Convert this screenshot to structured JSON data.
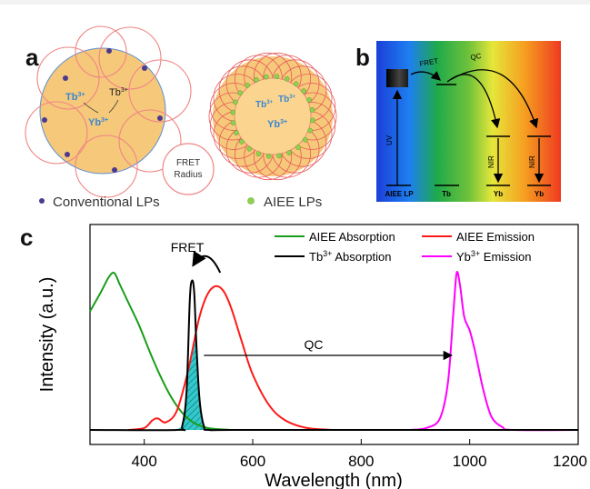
{
  "panels": {
    "a": {
      "label": "a",
      "ion_labels": {
        "tb": "Tb",
        "tb_sup": "3+",
        "yb": "Yb",
        "yb_sup": "3+"
      },
      "fret_radius_lines": [
        "FRET",
        "Radius"
      ],
      "legend": [
        {
          "text": "Conventional LPs",
          "color": "#4b3a8e"
        },
        {
          "text": "AIEE LPs",
          "color": "#8fd14f"
        }
      ]
    },
    "b": {
      "label": "b",
      "arrow_labels": [
        "FRET",
        "QC",
        "UV",
        "NIR",
        "NIR"
      ],
      "levels": [
        "AIEE LP",
        "Tb",
        "Yb",
        "Yb"
      ]
    },
    "c": {
      "label": "c"
    }
  },
  "chart_data": {
    "type": "line",
    "title": "",
    "xlabel": "Wavelength (nm)",
    "ylabel": "Intensity (a.u.)",
    "xlim": [
      300,
      1200
    ],
    "ylim": [
      0,
      1.05
    ],
    "xticks": [
      "400",
      "600",
      "800",
      "1000",
      "1200"
    ],
    "legend_position": "top",
    "legend": [
      {
        "name": "AIEE Absorption",
        "base": "AIEE Absorption",
        "sup": "",
        "rest": "",
        "color": "#1a9e1a"
      },
      {
        "name": "AIEE Emission",
        "base": "AIEE Emission",
        "sup": "",
        "rest": "",
        "color": "#ff1a1a"
      },
      {
        "name": "Tb3+ Absorption",
        "base": "Tb",
        "sup": "3+",
        "rest": " Absorption",
        "color": "#000000"
      },
      {
        "name": "Yb3+ Emission",
        "base": "Yb",
        "sup": "3+",
        "rest": " Emission",
        "color": "#ff00ff"
      }
    ],
    "series": [
      {
        "name": "AIEE Absorption",
        "color": "#1a9e1a",
        "x": [
          300,
          320,
          335,
          345,
          355,
          370,
          390,
          410,
          430,
          450,
          470,
          490,
          510,
          530,
          560
        ],
        "y": [
          0.62,
          0.72,
          0.8,
          0.82,
          0.76,
          0.67,
          0.55,
          0.41,
          0.28,
          0.17,
          0.09,
          0.04,
          0.015,
          0.005,
          0
        ]
      },
      {
        "name": "AIEE Emission",
        "color": "#ff1a1a",
        "x": [
          370,
          400,
          415,
          425,
          440,
          460,
          480,
          500,
          515,
          530,
          545,
          560,
          580,
          600,
          630,
          660,
          700,
          750
        ],
        "y": [
          0,
          0.01,
          0.05,
          0.06,
          0.04,
          0.1,
          0.3,
          0.57,
          0.7,
          0.75,
          0.73,
          0.64,
          0.46,
          0.29,
          0.13,
          0.05,
          0.01,
          0
        ]
      },
      {
        "name": "Tb3+ Absorption",
        "color": "#000000",
        "x": [
          300,
          460,
          470,
          478,
          484,
          488,
          492,
          496,
          502,
          510,
          520,
          600,
          1200
        ],
        "y": [
          0,
          0,
          0.02,
          0.2,
          0.68,
          0.78,
          0.72,
          0.46,
          0.16,
          0.02,
          0,
          0,
          0
        ]
      },
      {
        "name": "Yb3+ Emission",
        "color": "#ff00ff",
        "x": [
          890,
          920,
          945,
          960,
          970,
          976,
          982,
          990,
          1000,
          1010,
          1025,
          1040,
          1060,
          1080,
          1200
        ],
        "y": [
          0,
          0.01,
          0.06,
          0.25,
          0.62,
          0.82,
          0.76,
          0.59,
          0.52,
          0.41,
          0.21,
          0.07,
          0.015,
          0,
          0
        ]
      }
    ],
    "overlap_color": "#33c9cc",
    "annotations": [
      {
        "text": "FRET",
        "from_x": 540,
        "to_x": 490
      },
      {
        "text": "QC",
        "from_x": 510,
        "to_x": 970
      }
    ]
  }
}
